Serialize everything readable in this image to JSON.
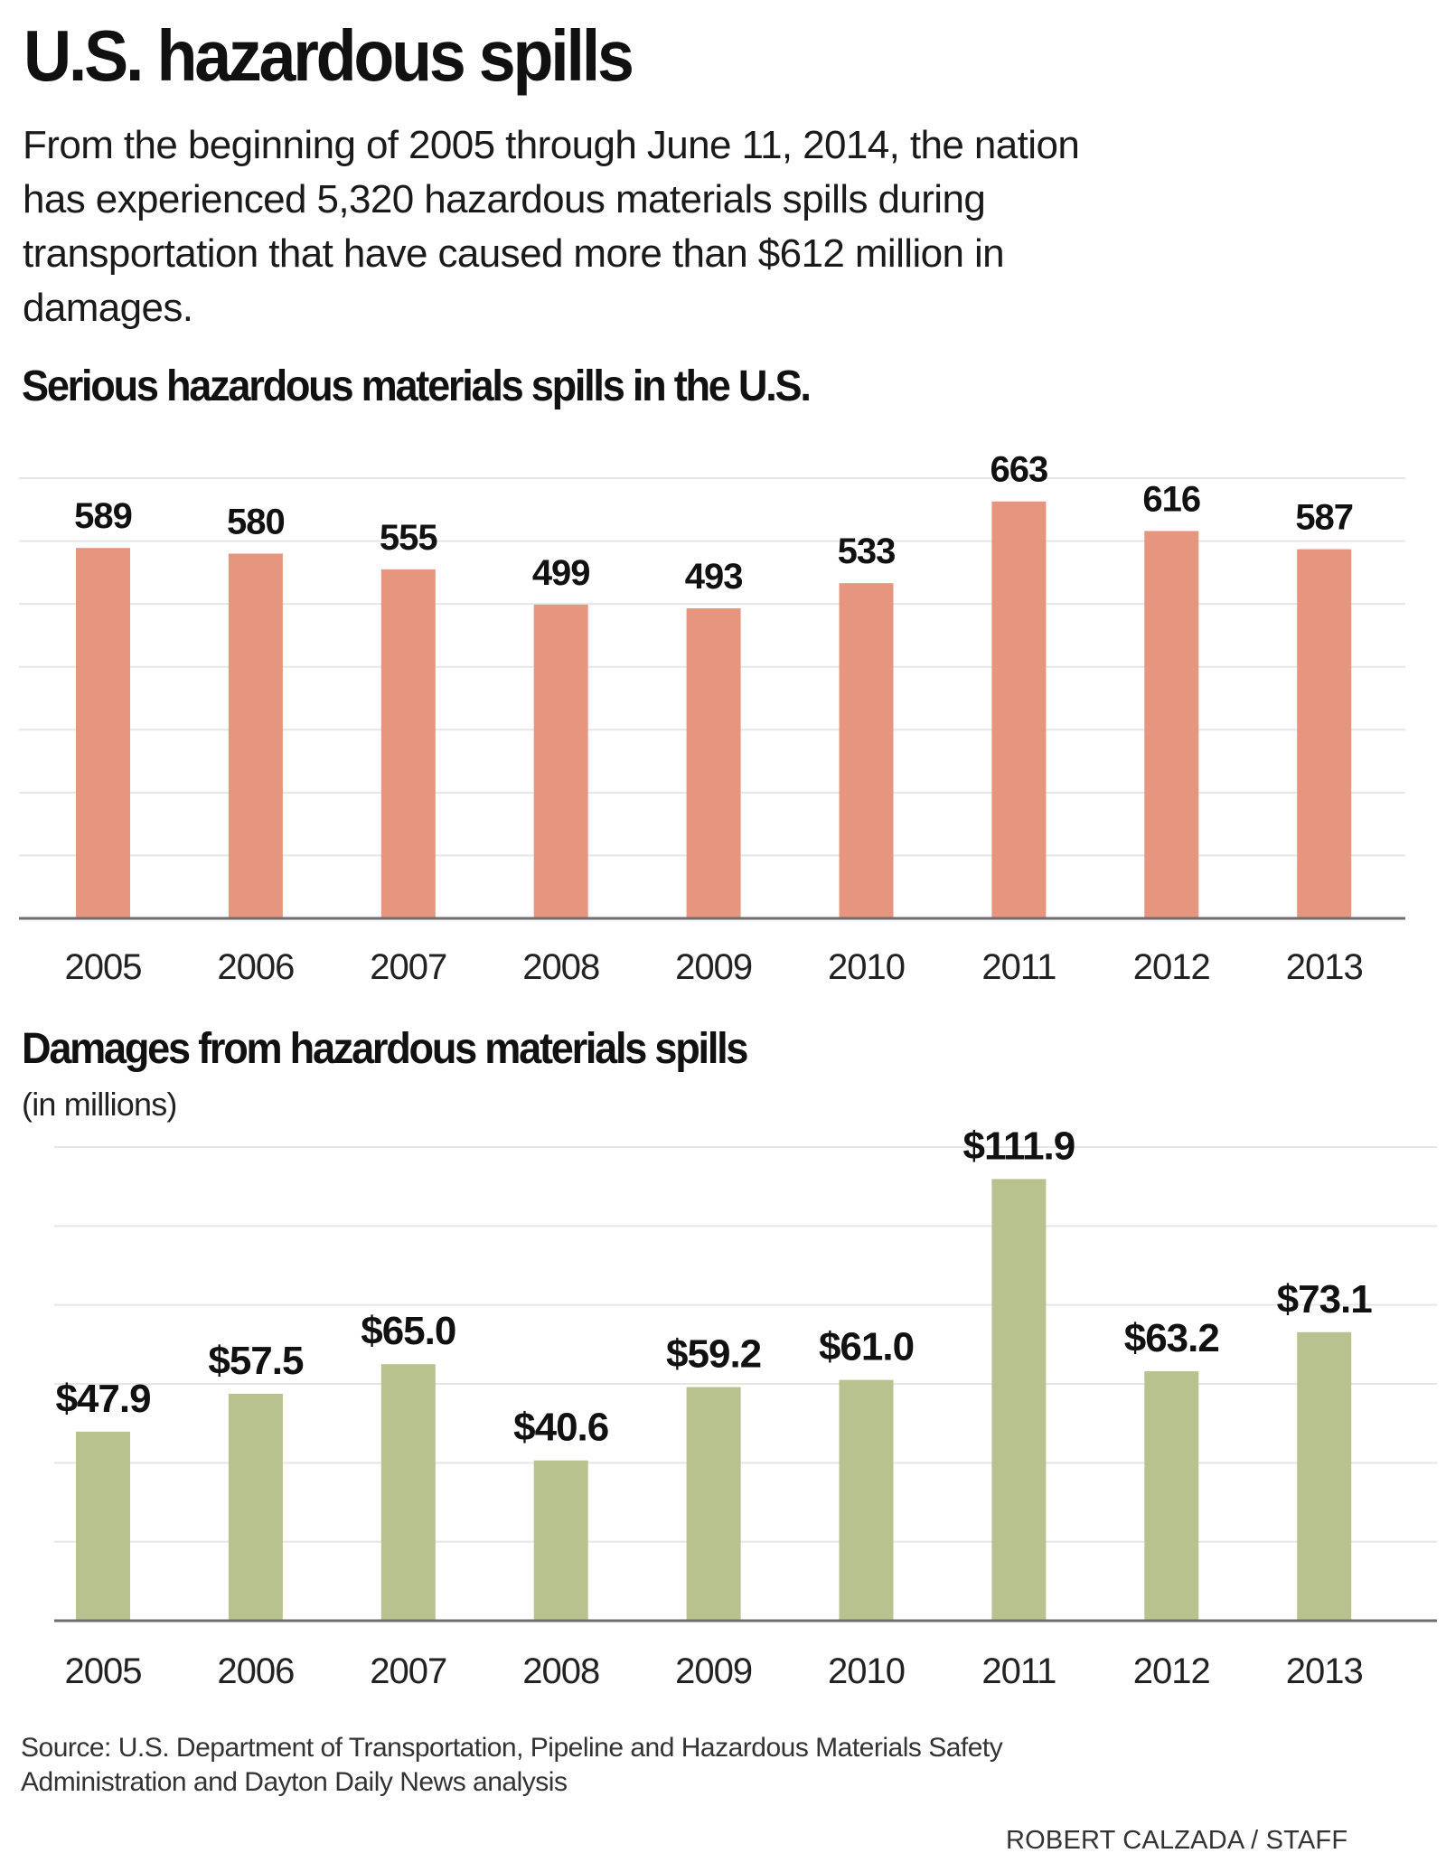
{
  "header": {
    "title": "U.S. hazardous spills",
    "intro_lines": [
      "From the beginning of 2005 through June 11, 2014, the nation",
      "has experienced 5,320 hazardous materials spills during",
      "transportation that have caused more than $612 million in",
      "damages."
    ]
  },
  "colors": {
    "spills_bar": "#E6957F",
    "damages_bar": "#B8C28F",
    "gridline": "#E6E6E6",
    "axis": "#6E6E6E"
  },
  "chart_data": [
    {
      "type": "bar",
      "title": "Serious hazardous materials spills in the U.S.",
      "subtitle": "",
      "xlabel": "",
      "ylabel": "",
      "categories": [
        "2005",
        "2006",
        "2007",
        "2008",
        "2009",
        "2010",
        "2011",
        "2012",
        "2013"
      ],
      "values": [
        589,
        580,
        555,
        499,
        493,
        533,
        663,
        616,
        587
      ],
      "value_labels": [
        "589",
        "580",
        "555",
        "499",
        "493",
        "533",
        "663",
        "616",
        "587"
      ],
      "ylim": [
        0,
        700
      ],
      "grid_step": 100,
      "grid": true,
      "y_tick_labels_shown": false,
      "legend": "none"
    },
    {
      "type": "bar",
      "title": "Damages from hazardous materials spills",
      "subtitle": "(in millions)",
      "xlabel": "",
      "ylabel": "",
      "categories": [
        "2005",
        "2006",
        "2007",
        "2008",
        "2009",
        "2010",
        "2011",
        "2012",
        "2013"
      ],
      "values": [
        47.9,
        57.5,
        65.0,
        40.6,
        59.2,
        61.0,
        111.9,
        63.2,
        73.1
      ],
      "value_labels": [
        "$47.9",
        "$57.5",
        "$65.0",
        "$40.6",
        "$59.2",
        "$61.0",
        "$111.9",
        "$63.2",
        "$73.1"
      ],
      "ylim": [
        0,
        120
      ],
      "grid_step": 20,
      "grid": true,
      "y_tick_labels_shown": false,
      "legend": "none"
    }
  ],
  "footer": {
    "source_lines": [
      "Source: U.S. Department of Transportation, Pipeline and Hazardous Materials Safety",
      "Administration and Dayton Daily News analysis"
    ],
    "credit": "ROBERT CALZADA / STAFF"
  }
}
